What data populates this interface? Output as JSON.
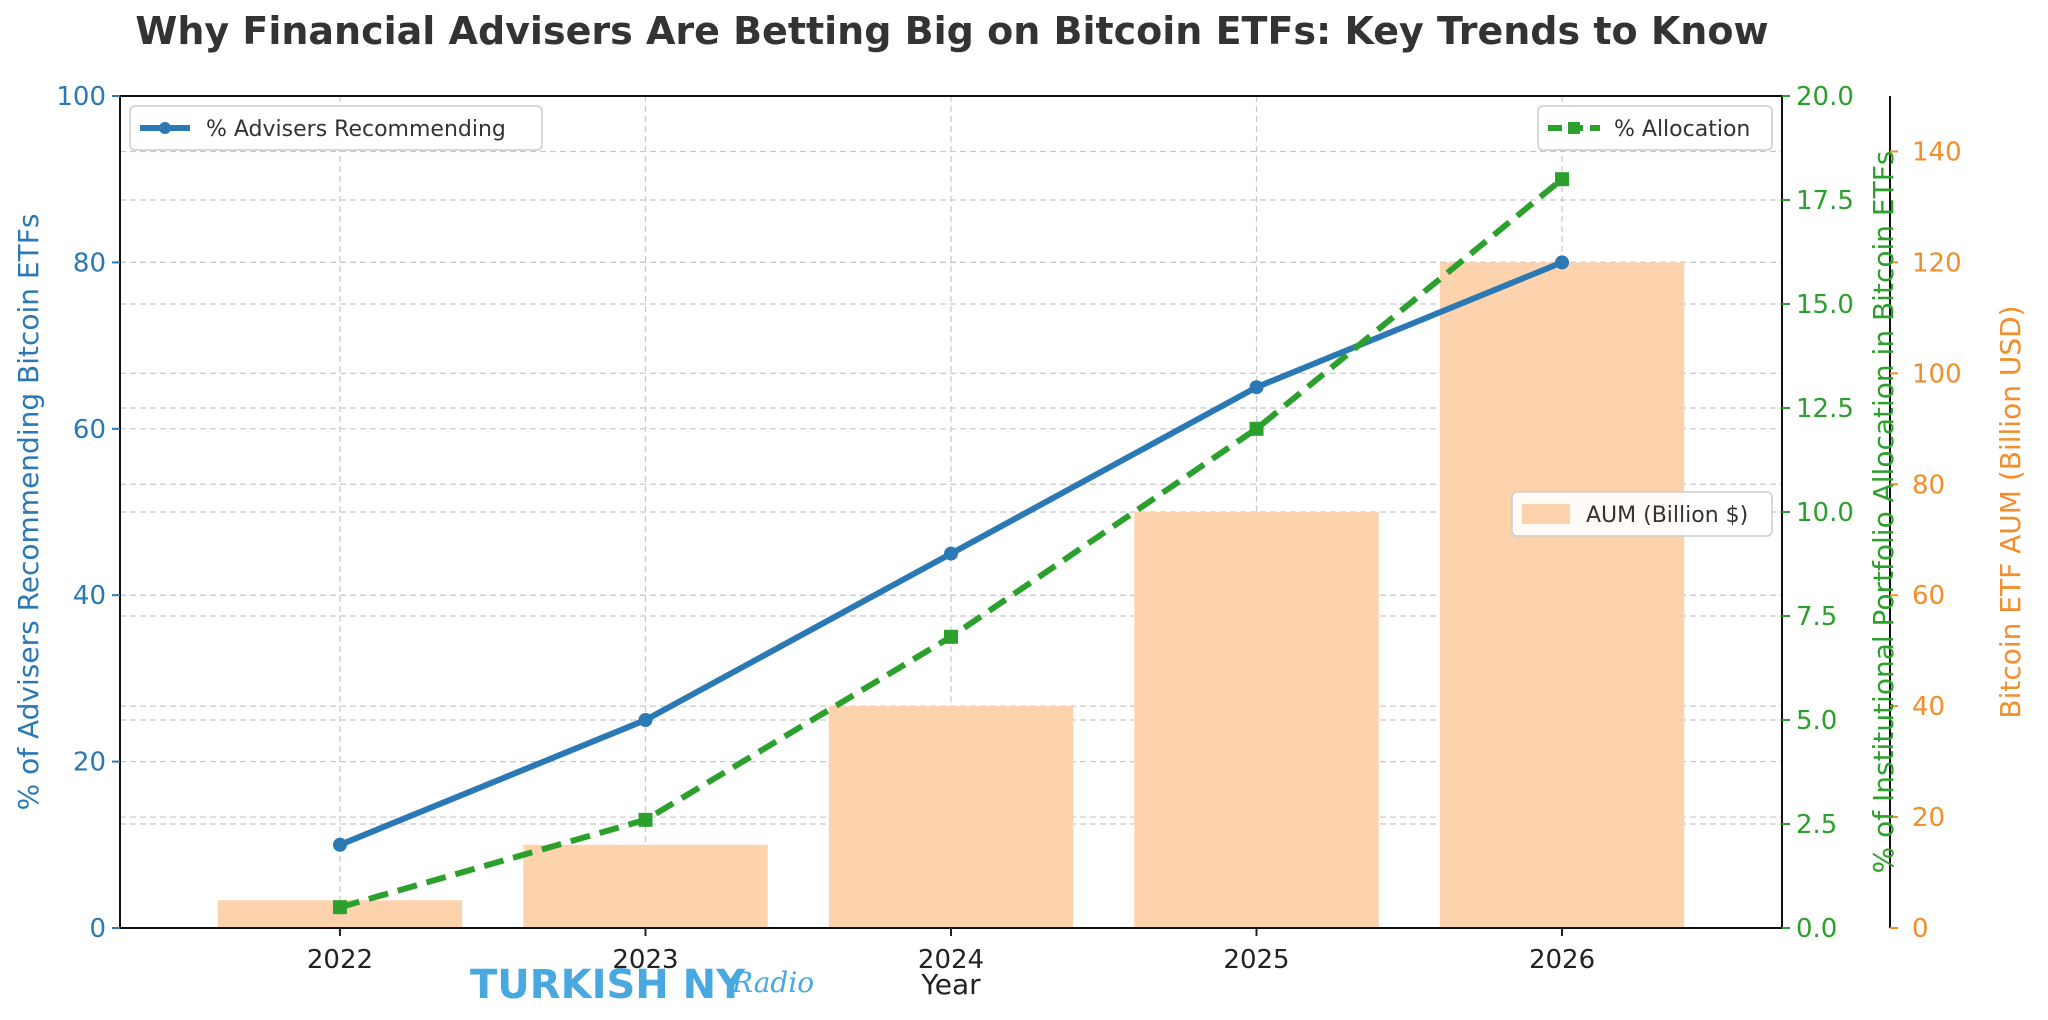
{
  "chart_data": {
    "type": "bar+line",
    "title": "Why Financial Advisers Are Betting Big on Bitcoin ETFs: Key Trends to Know",
    "xlabel": "Year",
    "categories": [
      "2022",
      "2023",
      "2024",
      "2025",
      "2026"
    ],
    "series": [
      {
        "name": "% Advisers Recommending",
        "type": "line",
        "axis": "left",
        "color": "#2a78b4",
        "values": [
          10,
          25,
          45,
          65,
          80
        ]
      },
      {
        "name": "% Allocation",
        "type": "line",
        "axis": "right-inner",
        "color": "#2ca02c",
        "values": [
          0.5,
          2.6,
          7.0,
          12.0,
          18.0
        ]
      },
      {
        "name": "AUM (Billion $)",
        "type": "bar",
        "axis": "right-outer",
        "color": "#fdd3ad",
        "values": [
          5,
          15,
          40,
          75,
          120
        ]
      }
    ],
    "axes": {
      "left": {
        "label": "% of Advisers Recommending Bitcoin ETFs",
        "range": [
          0,
          100
        ],
        "ticks": [
          "0",
          "20",
          "40",
          "60",
          "80",
          "100"
        ],
        "color": "#2a78b4"
      },
      "right_inner": {
        "label": "% of Institutional Portfolio Allocation in Bitcoin ETFs",
        "range": [
          0,
          20
        ],
        "ticks": [
          "0.0",
          "2.5",
          "5.0",
          "7.5",
          "10.0",
          "12.5",
          "15.0",
          "17.5",
          "20.0"
        ],
        "color": "#2ca02c"
      },
      "right_outer": {
        "label": "Bitcoin ETF AUM (Billion USD)",
        "range": [
          0,
          150
        ],
        "ticks": [
          "0",
          "20",
          "40",
          "60",
          "80",
          "100",
          "120",
          "140"
        ],
        "color": "#f28e2b"
      }
    },
    "grid": true,
    "legends": {
      "advisers": "top-left",
      "allocation": "top-right",
      "aum": "middle-right"
    }
  },
  "watermark": {
    "main": "TURKISH NY",
    "script": "Radio"
  }
}
